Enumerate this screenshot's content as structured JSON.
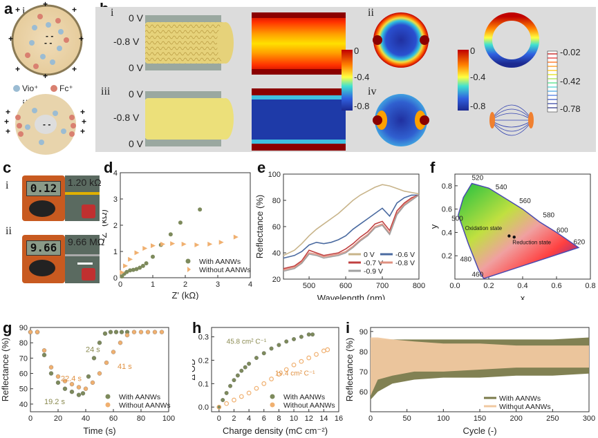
{
  "panel_labels": {
    "a": "a",
    "b": "b",
    "c": "c",
    "d": "d",
    "e": "e",
    "f": "f",
    "g": "g",
    "h": "h",
    "i": "i"
  },
  "panel_a": {
    "sub_i": "i",
    "sub_ii": "ii",
    "legend_vio": "Vio⁺",
    "legend_fc": "Fc⁺"
  },
  "panel_b": {
    "sub_i": "i",
    "sub_ii": "ii",
    "sub_iii": "iii",
    "sub_iv": "iv",
    "voltages_i": [
      "0 V",
      "-0.8 V",
      "0 V"
    ],
    "voltages_iii": [
      "0 V",
      "-0.8 V",
      "0 V"
    ],
    "colorbar1": [
      "0",
      "-0.4",
      "-0.8"
    ],
    "colorbar2": [
      "0",
      "-0.4",
      "-0.8"
    ],
    "colorbar3": [
      "-0.02",
      "-0.42",
      "-0.78"
    ]
  },
  "panel_c": {
    "sub_i": "i",
    "sub_ii": "ii",
    "reading_i": "0.12",
    "reading_ii": "9.66",
    "resistance_i": "1.20 kΩ",
    "resistance_ii": "9.66 MΩ"
  },
  "chart_data": [
    {
      "id": "d",
      "type": "scatter",
      "xlabel": "Z' (kΩ)",
      "ylabel": "-Z'' (kΩ)",
      "xlim": [
        0,
        4
      ],
      "ylim": [
        0,
        4
      ],
      "xticks": [
        "0",
        "1",
        "2",
        "3",
        "4"
      ],
      "yticks": [
        "0",
        "1",
        "2",
        "3",
        "4"
      ],
      "series": [
        {
          "name": "With AANWs",
          "color": "#7d8a5c",
          "x": [
            0.05,
            0.12,
            0.2,
            0.3,
            0.4,
            0.5,
            0.6,
            0.7,
            0.8,
            1.0,
            1.25,
            1.55,
            1.85,
            2.45
          ],
          "y": [
            0.05,
            0.15,
            0.22,
            0.28,
            0.3,
            0.33,
            0.38,
            0.45,
            0.55,
            0.8,
            1.25,
            1.65,
            2.1,
            2.6
          ]
        },
        {
          "name": "Without AANWs",
          "color": "#f0b070",
          "x": [
            0.05,
            0.15,
            0.3,
            0.5,
            0.75,
            1.0,
            1.3,
            1.6,
            1.95,
            2.35,
            2.75,
            3.1,
            3.55
          ],
          "y": [
            0.2,
            0.45,
            0.7,
            0.95,
            1.12,
            1.22,
            1.28,
            1.3,
            1.28,
            1.25,
            1.28,
            1.35,
            1.55
          ]
        }
      ]
    },
    {
      "id": "e",
      "type": "line",
      "xlabel": "Wavelength (nm)",
      "ylabel": "Reflectance (%)",
      "xlim": [
        430,
        800
      ],
      "ylim": [
        20,
        100
      ],
      "xticks": [
        "500",
        "600",
        "700",
        "800"
      ],
      "yticks": [
        "20",
        "40",
        "60",
        "80",
        "100"
      ],
      "x": [
        430,
        460,
        480,
        500,
        520,
        540,
        560,
        580,
        600,
        620,
        640,
        660,
        680,
        700,
        720,
        740,
        760,
        780,
        800
      ],
      "series": [
        {
          "name": "0 V",
          "color": "#c8b48a",
          "values": [
            38,
            42,
            47,
            53,
            58,
            62,
            66,
            70,
            75,
            80,
            84,
            87,
            90,
            92,
            91,
            89,
            87,
            86,
            85
          ]
        },
        {
          "name": "-0.6 V",
          "color": "#4a6aa0",
          "values": [
            36,
            38,
            41,
            46,
            48,
            47,
            48,
            50,
            53,
            58,
            62,
            66,
            70,
            74,
            68,
            78,
            82,
            84,
            84
          ]
        },
        {
          "name": "-0.7 V",
          "color": "#c04040",
          "values": [
            28,
            30,
            34,
            42,
            40,
            38,
            39,
            40,
            43,
            47,
            52,
            56,
            62,
            64,
            57,
            72,
            78,
            82,
            84
          ]
        },
        {
          "name": "-0.8 V",
          "color": "#e09080",
          "values": [
            27,
            29,
            33,
            40,
            39,
            37,
            38,
            39,
            41,
            45,
            50,
            54,
            60,
            62,
            55,
            70,
            77,
            81,
            84
          ]
        },
        {
          "name": "-0.9 V",
          "color": "#a0a0a0",
          "values": [
            26,
            28,
            32,
            39,
            38,
            36,
            37,
            38,
            40,
            44,
            49,
            53,
            59,
            61,
            54,
            69,
            76,
            80,
            84
          ]
        }
      ]
    },
    {
      "id": "f",
      "type": "scatter",
      "xlabel": "x",
      "ylabel": "y",
      "xlim": [
        0,
        0.8
      ],
      "ylim": [
        0,
        0.9
      ],
      "xticks": [
        "0.0",
        "0.2",
        "0.4",
        "0.6",
        "0.8"
      ],
      "yticks": [
        "0.2",
        "0.4",
        "0.6",
        "0.8"
      ],
      "wavelength_labels": [
        "520",
        "540",
        "560",
        "580",
        "600",
        "620",
        "500",
        "480",
        "460"
      ],
      "annotations": [
        "Oxidation state",
        "Reduction state"
      ],
      "points": [
        {
          "name": "Oxidation state",
          "x": 0.32,
          "y": 0.37
        },
        {
          "name": "Reduction state",
          "x": 0.35,
          "y": 0.36
        }
      ]
    },
    {
      "id": "g",
      "type": "scatter",
      "xlabel": "Time (s)",
      "ylabel": "Reflectance (%)",
      "xlim": [
        0,
        100
      ],
      "ylim": [
        35,
        90
      ],
      "xticks": [
        "0",
        "20",
        "40",
        "60",
        "80",
        "100"
      ],
      "yticks": [
        "40",
        "50",
        "60",
        "70",
        "80",
        "90"
      ],
      "annotations": [
        "24 s",
        "41 s",
        "22.4 s",
        "19.2 s"
      ],
      "series": [
        {
          "name": "With AANWs",
          "color": "#7d8a5c",
          "x": [
            0,
            5,
            10,
            15,
            20,
            25,
            30,
            35,
            38,
            42,
            46,
            50,
            54,
            58,
            62,
            66,
            70
          ],
          "y": [
            87,
            87,
            72,
            60,
            54,
            50,
            48,
            46,
            47,
            58,
            70,
            80,
            86,
            87,
            87,
            87,
            87
          ]
        },
        {
          "name": "Without AANWs",
          "color": "#f0b070",
          "x": [
            0,
            5,
            10,
            15,
            20,
            25,
            30,
            35,
            40,
            45,
            50,
            55,
            60,
            65,
            70,
            75,
            80,
            85,
            90,
            95
          ],
          "y": [
            87,
            87,
            75,
            64,
            58,
            55,
            53,
            51,
            50,
            54,
            60,
            67,
            74,
            80,
            85,
            87,
            87,
            87,
            87,
            87
          ]
        }
      ]
    },
    {
      "id": "h",
      "type": "scatter",
      "xlabel": "Charge density (mC cm⁻²)",
      "ylabel": "Δ OD",
      "xlim": [
        -1,
        16
      ],
      "ylim": [
        -0.02,
        0.34
      ],
      "xticks": [
        "0",
        "2",
        "4",
        "6",
        "8",
        "10",
        "12",
        "14",
        "16"
      ],
      "yticks": [
        "0.0",
        "0.1",
        "0.2",
        "0.3"
      ],
      "annotations": [
        "45.8 cm² C⁻¹",
        "19.4 cm² C⁻¹"
      ],
      "series": [
        {
          "name": "With AANWs",
          "color": "#7d8a5c",
          "x": [
            0,
            0.5,
            1,
            1.5,
            2,
            2.5,
            3,
            3.5,
            4,
            5,
            6,
            7,
            8,
            9,
            10,
            11,
            12,
            12.5
          ],
          "y": [
            0,
            0.03,
            0.06,
            0.09,
            0.115,
            0.135,
            0.155,
            0.17,
            0.185,
            0.21,
            0.23,
            0.25,
            0.265,
            0.28,
            0.29,
            0.3,
            0.31,
            0.31
          ]
        },
        {
          "name": "Without AANWs",
          "color": "#f0b070",
          "x": [
            0,
            1,
            2,
            3,
            4,
            5,
            6,
            7,
            8,
            9,
            10,
            11,
            12,
            13,
            14,
            14.5
          ],
          "y": [
            0,
            0.015,
            0.03,
            0.045,
            0.06,
            0.08,
            0.1,
            0.12,
            0.14,
            0.16,
            0.18,
            0.195,
            0.21,
            0.225,
            0.24,
            0.245
          ]
        }
      ]
    },
    {
      "id": "i",
      "type": "area",
      "xlabel": "Cycle (-)",
      "ylabel": "Reflectance (%)",
      "xlim": [
        0,
        300
      ],
      "ylim": [
        50,
        92
      ],
      "xticks": [
        "0",
        "50",
        "100",
        "150",
        "200",
        "250",
        "300"
      ],
      "yticks": [
        "60",
        "70",
        "80",
        "90"
      ],
      "series": [
        {
          "name": "With AANWs",
          "color": "#7a7a4a",
          "x": [
            0,
            10,
            30,
            60,
            100,
            150,
            200,
            250,
            300
          ],
          "upper": [
            86,
            86,
            86,
            86,
            86,
            86,
            86,
            86,
            87
          ],
          "lower": [
            56,
            60,
            64,
            66,
            67,
            67,
            68,
            68,
            69
          ]
        },
        {
          "name": "Without AANWs",
          "color": "#f0c8a0",
          "x": [
            0,
            10,
            30,
            60,
            100,
            150,
            200,
            250,
            300
          ],
          "upper": [
            87,
            87,
            86,
            85,
            84,
            84,
            83,
            83,
            83
          ],
          "lower": [
            58,
            66,
            68,
            70,
            70,
            71,
            72,
            72,
            72
          ]
        }
      ]
    }
  ],
  "legends": {
    "d": [
      "With AANWs",
      "Without AANWs"
    ],
    "e": [
      "0 V",
      "-0.6 V",
      "-0.7 V",
      "-0.8 V",
      "-0.9 V"
    ],
    "g": [
      "With AANWs",
      "Without AANWs"
    ],
    "h": [
      "With AANWs",
      "Without AANWs"
    ],
    "i": [
      "With AANWs",
      "Without AANWs"
    ]
  }
}
